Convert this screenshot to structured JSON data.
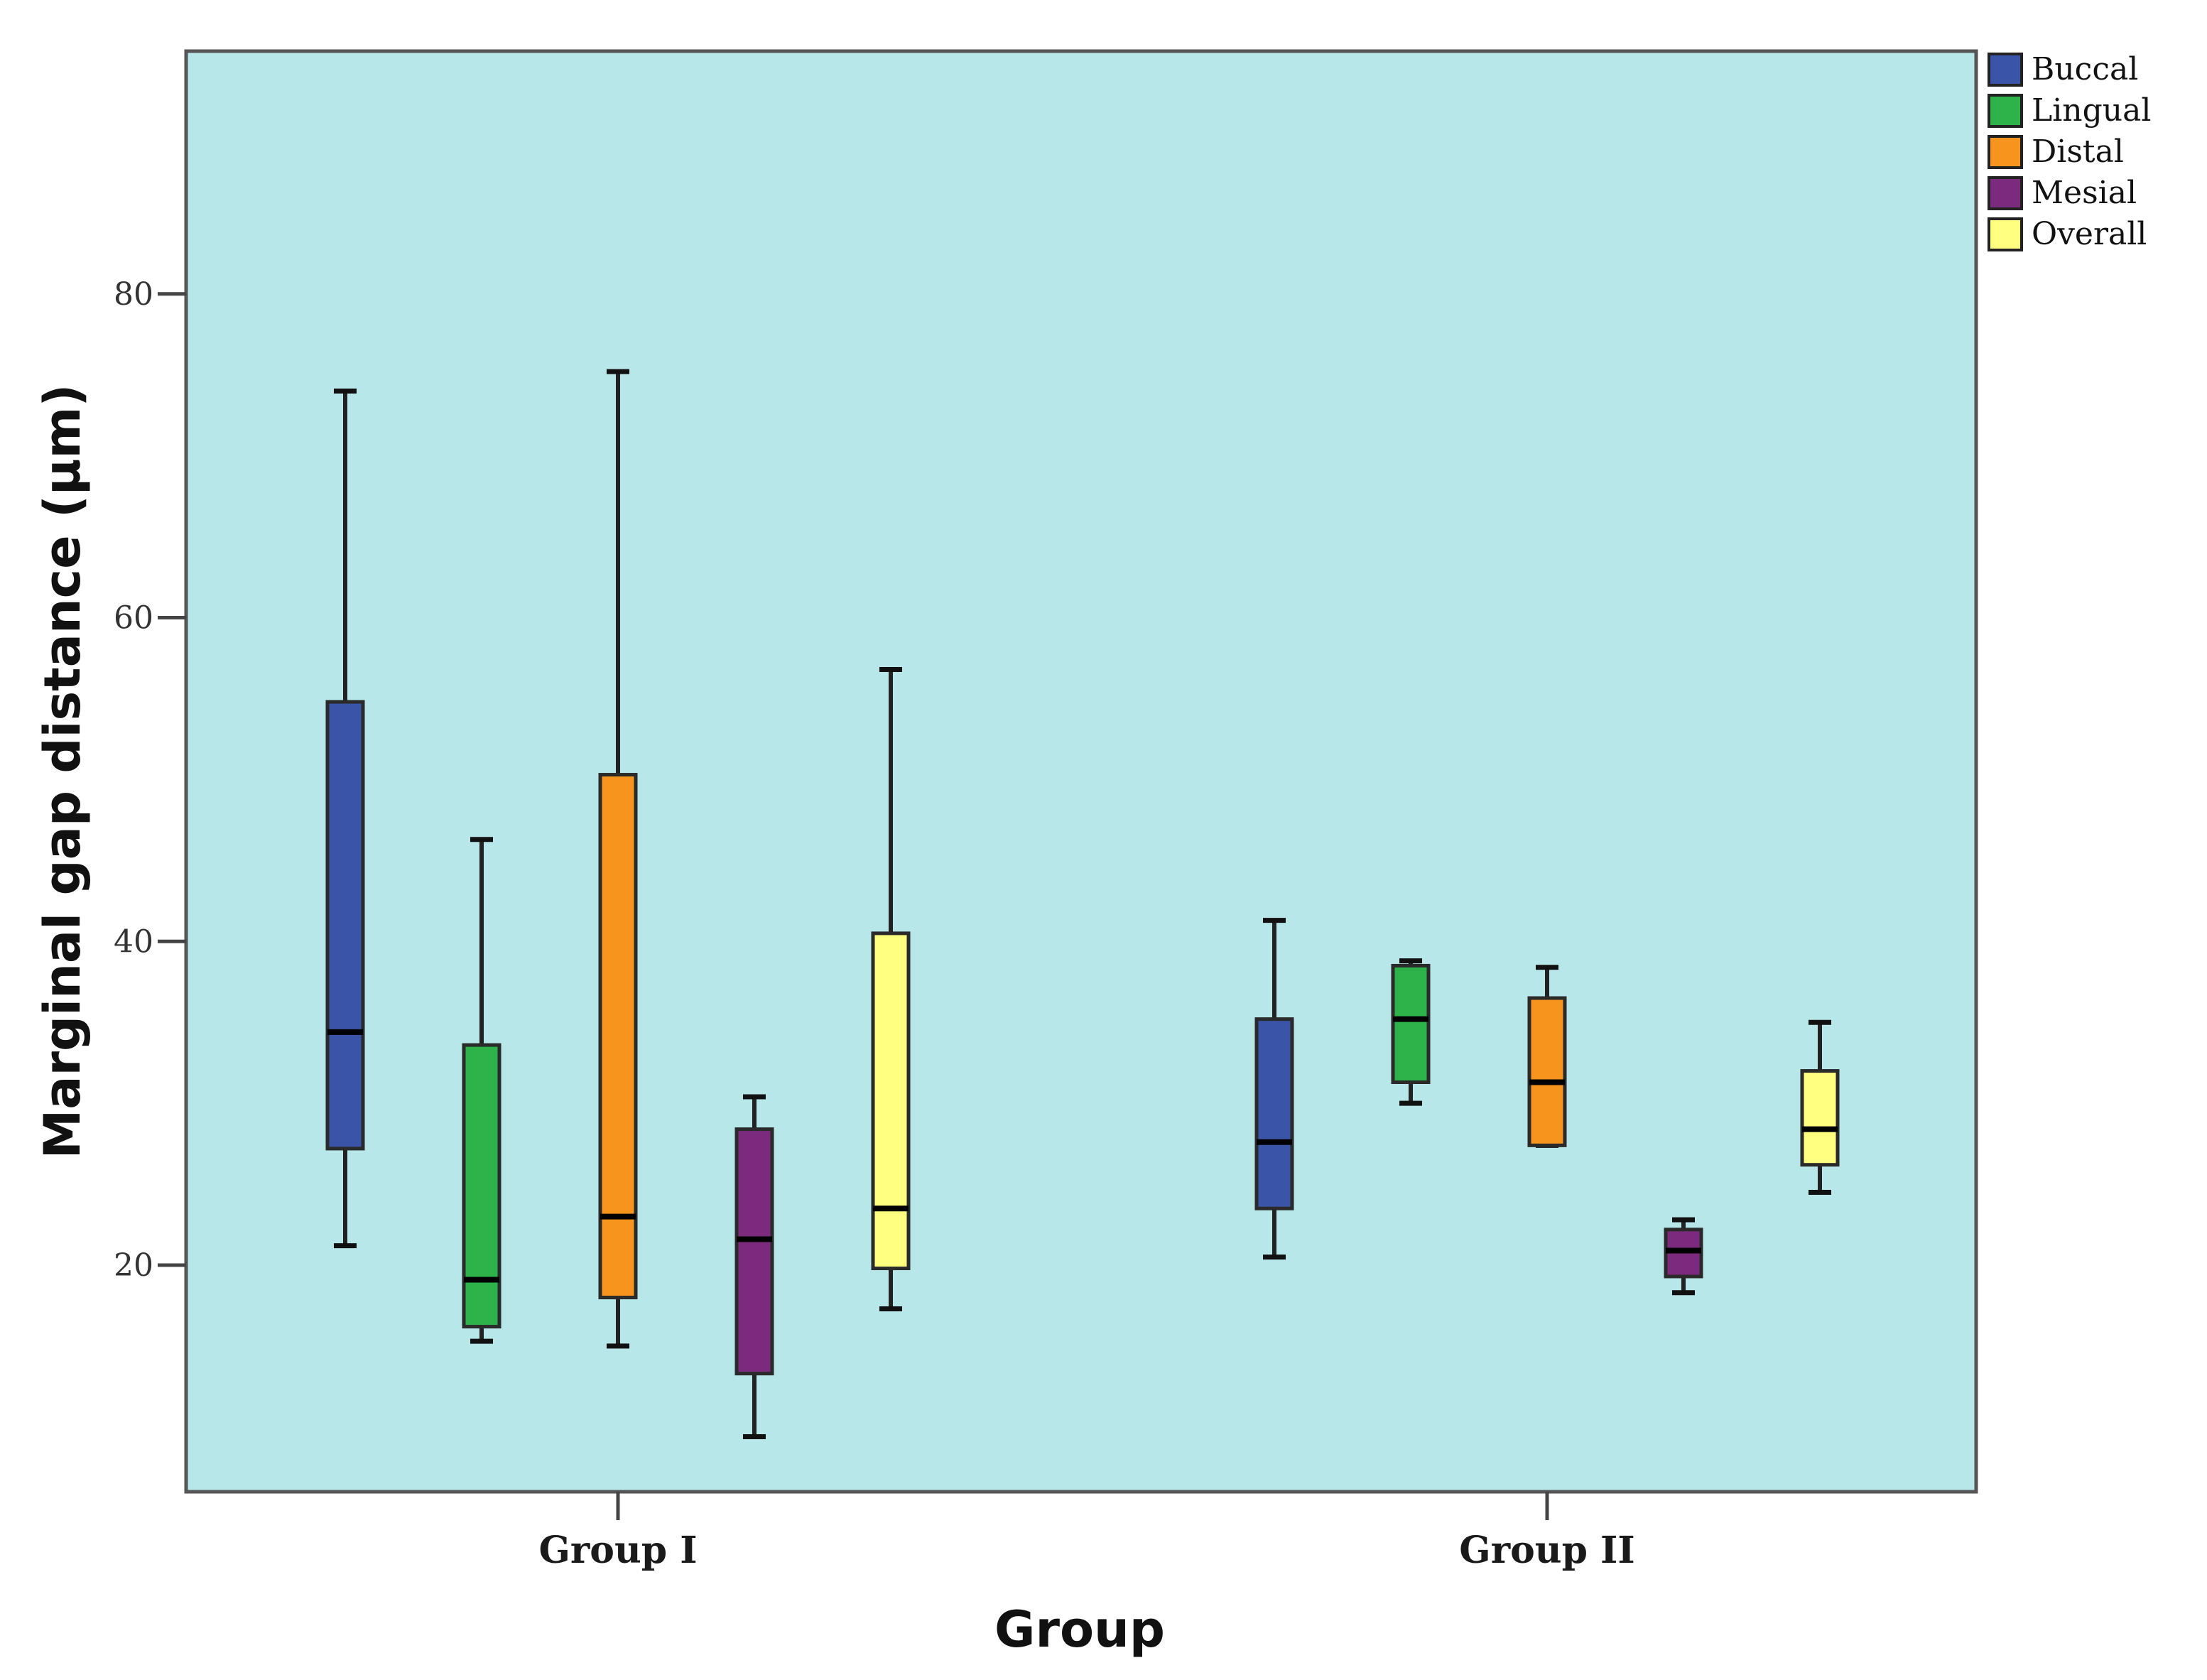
{
  "chart_data": {
    "type": "boxplot",
    "title": "",
    "xlabel": "Group",
    "ylabel": "Marginal gap distance (µm)",
    "ylim": [
      6,
      95
    ],
    "yticks": [
      20,
      40,
      60,
      80
    ],
    "ytick_labels": [
      "20",
      "40",
      "60",
      "80"
    ],
    "categories": [
      "Group I",
      "Group II"
    ],
    "legend_position": "top-right, outside plot",
    "grid": false,
    "background_color": "#b7e7e8",
    "series": [
      {
        "name": "Buccal",
        "color": "#3a55a8",
        "boxes": [
          {
            "whisker_low": 21.2,
            "q1": 27.2,
            "median": 34.4,
            "q3": 54.8,
            "whisker_high": 74.0
          },
          {
            "whisker_low": 20.5,
            "q1": 23.5,
            "median": 27.6,
            "q3": 35.2,
            "whisker_high": 41.3
          }
        ]
      },
      {
        "name": "Lingual",
        "color": "#2db34a",
        "boxes": [
          {
            "whisker_low": 15.3,
            "q1": 16.2,
            "median": 19.1,
            "q3": 33.6,
            "whisker_high": 46.3
          },
          {
            "whisker_low": 30.0,
            "q1": 31.3,
            "median": 35.2,
            "q3": 38.5,
            "whisker_high": 38.8
          }
        ]
      },
      {
        "name": "Distal",
        "color": "#f7941d",
        "boxes": [
          {
            "whisker_low": 15.0,
            "q1": 18.0,
            "median": 23.0,
            "q3": 50.3,
            "whisker_high": 75.2
          },
          {
            "whisker_low": 27.4,
            "q1": 27.4,
            "median": 31.3,
            "q3": 36.5,
            "whisker_high": 38.4
          }
        ]
      },
      {
        "name": "Mesial",
        "color": "#7b2a7d",
        "boxes": [
          {
            "whisker_low": 9.4,
            "q1": 13.3,
            "median": 21.6,
            "q3": 28.4,
            "whisker_high": 30.4
          },
          {
            "whisker_low": 18.3,
            "q1": 19.3,
            "median": 20.9,
            "q3": 22.2,
            "whisker_high": 22.8
          }
        ]
      },
      {
        "name": "Overall",
        "color": "#ffff80",
        "boxes": [
          {
            "whisker_low": 17.3,
            "q1": 19.8,
            "median": 23.5,
            "q3": 40.5,
            "whisker_high": 56.8
          },
          {
            "whisker_low": 24.5,
            "q1": 26.2,
            "median": 28.4,
            "q3": 32.0,
            "whisker_high": 35.0
          }
        ]
      }
    ]
  }
}
